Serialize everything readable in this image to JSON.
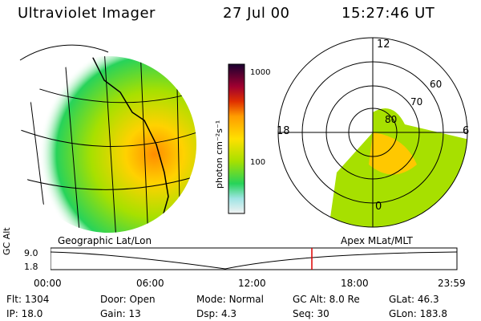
{
  "header": {
    "title": "Ultraviolet Imager",
    "date": "27 Jul 00",
    "time": "15:27:46 UT"
  },
  "colorbar": {
    "tick_labels": [
      "1000",
      "100"
    ],
    "unit_label": "photon cm⁻²s⁻¹"
  },
  "geo_panel": {
    "caption": "Geographic Lat/Lon"
  },
  "polar_panel": {
    "caption": "Apex MLat/MLT",
    "mlt_labels": [
      "12",
      "18",
      "6",
      "0"
    ],
    "lat_labels": [
      "60",
      "70",
      "80"
    ]
  },
  "timeline": {
    "axis_label": "GC Alt",
    "y_labels": [
      "9.0",
      "1.8"
    ],
    "x_ticks": [
      "00:00",
      "06:00",
      "12:00",
      "18:00",
      "23:59"
    ],
    "marker_time": "15:27:46",
    "marker_color": "#dd0000"
  },
  "info_rows": [
    {
      "label": "Flt:",
      "value": "1304"
    },
    {
      "label": "Door:",
      "value": "Open"
    },
    {
      "label": "Mode:",
      "value": "Normal"
    },
    {
      "label": "GC Alt:",
      "value": "8.0 Re"
    },
    {
      "label": "GLat:",
      "value": "46.3"
    },
    {
      "label": "IP:",
      "value": "18.0"
    },
    {
      "label": "Gain:",
      "value": "13"
    },
    {
      "label": "Dsp:",
      "value": "4.3"
    },
    {
      "label": "Seq:",
      "value": "30"
    },
    {
      "label": "GLon:",
      "value": "183.8"
    }
  ],
  "colors": {
    "background": "#ffffff",
    "low": "#d9eef0",
    "mid": "#a7e000",
    "high": "#ffae00",
    "peak": "#1a0030"
  }
}
